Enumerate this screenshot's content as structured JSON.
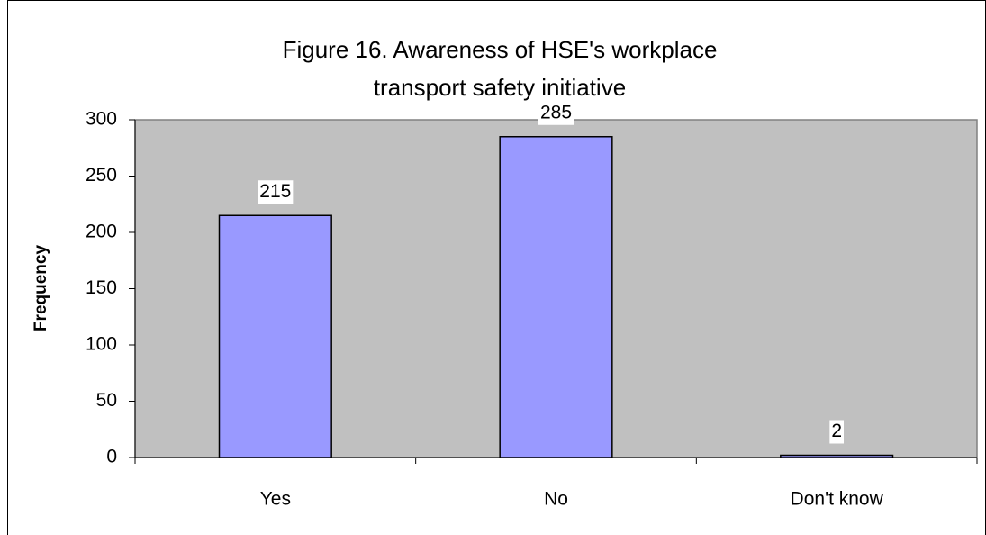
{
  "chart_data": {
    "type": "bar",
    "title": [
      "Figure 16. Awareness of HSE's workplace",
      "transport safety initiative"
    ],
    "y_label": "Frequency",
    "categories": [
      "Yes",
      "No",
      "Don't know"
    ],
    "values": [
      215,
      285,
      2
    ],
    "color": "#9999ff",
    "plot_background": "#c0c0c0",
    "ylim": [
      0,
      300
    ],
    "yticks": [
      0,
      50,
      100,
      150,
      200,
      250,
      300
    ],
    "grid": false
  }
}
